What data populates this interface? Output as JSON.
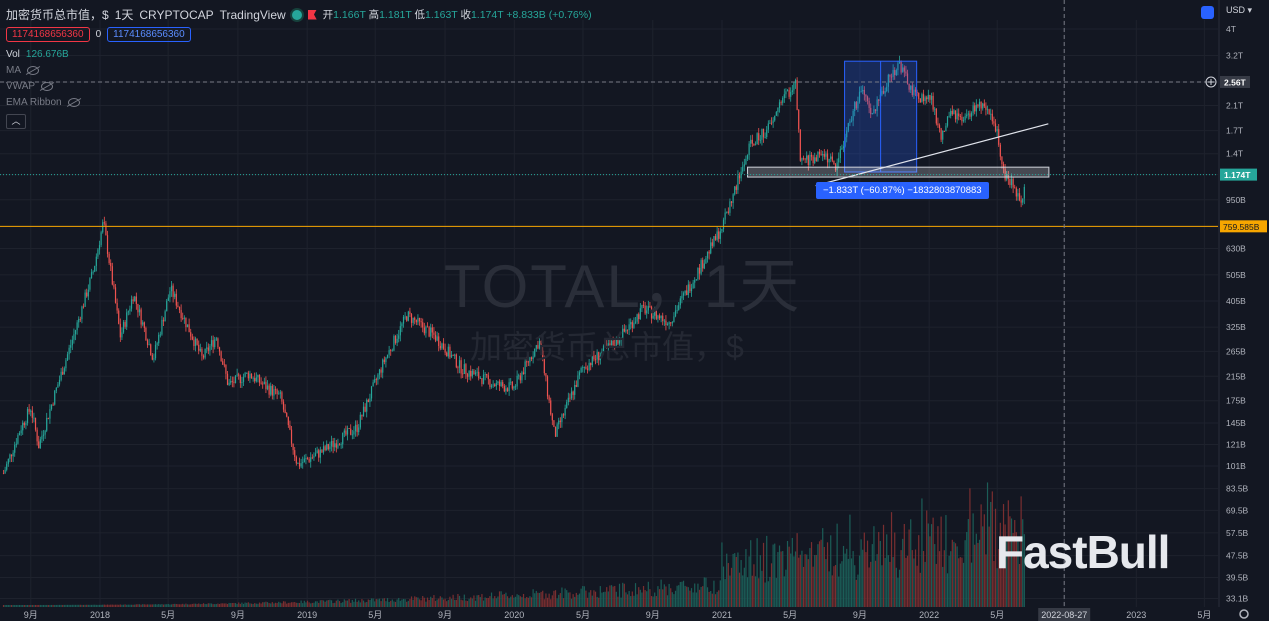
{
  "header": {
    "symbol_title": "加密货币总市值，$",
    "interval": "1天",
    "exchange": "CRYPTOCAP",
    "source": "TradingView",
    "ohlc_open_label": "开",
    "ohlc_open": "1.166T",
    "ohlc_high_label": "高",
    "ohlc_high": "1.181T",
    "ohlc_low_label": "低",
    "ohlc_low": "1.163T",
    "ohlc_close_label": "收",
    "ohlc_close": "1.174T",
    "change": "+8.833B (+0.76%)",
    "sell_box": "1174168656360",
    "spread": "0",
    "buy_box": "1174168656360",
    "currency": "USD"
  },
  "indicators": {
    "vol_label": "Vol",
    "vol_value": "126.676B",
    "ma": "MA",
    "vwap": "VWAP",
    "ema_ribbon": "EMA Ribbon",
    "collapse_icon": "chevron-up-icon"
  },
  "watermark": {
    "line1": "TOTAL，1天",
    "line2": "加密货币总市值，$",
    "brand": "FastBull"
  },
  "annotations": {
    "measure_label": "−1.833T (−60.87%) −1832803870883",
    "crosshair_price": "2.56T",
    "last_price": "1.174T",
    "hline_price": "759.585B",
    "crosshair_date": "2022-08-27"
  },
  "colors": {
    "background": "#131722",
    "up": "#26a69a",
    "down": "#ef5350",
    "accent": "#2962ff",
    "hline": "#f7a600"
  },
  "chart_data": {
    "type": "candlestick",
    "title": "加密货币总市值，$",
    "y_scale": "log",
    "y_ticks": [
      "4T",
      "3.2T",
      "2.56T",
      "2.1T",
      "1.7T",
      "1.4T",
      "1.174T",
      "950B",
      "759.585B",
      "630B",
      "505B",
      "405B",
      "325B",
      "265B",
      "215B",
      "175B",
      "145B",
      "121B",
      "101B",
      "83.5B",
      "69.5B",
      "57.5B",
      "47.5B",
      "39.5B",
      "33.1B"
    ],
    "x_ticks": [
      "9月",
      "2018",
      "5月",
      "9月",
      "2019",
      "5月",
      "9月",
      "2020",
      "5月",
      "9月",
      "2021",
      "5月",
      "9月",
      "2022",
      "5月",
      "2022-08-27",
      "2023",
      "5月"
    ],
    "price_path": [
      [
        "2017-07-15",
        95
      ],
      [
        "2017-08-15",
        140
      ],
      [
        "2017-09-01",
        165
      ],
      [
        "2017-09-15",
        120
      ],
      [
        "2017-10-15",
        190
      ],
      [
        "2017-11-15",
        300
      ],
      [
        "2017-12-20",
        520
      ],
      [
        "2018-01-07",
        790
      ],
      [
        "2018-02-06",
        300
      ],
      [
        "2018-03-01",
        430
      ],
      [
        "2018-04-05",
        250
      ],
      [
        "2018-05-05",
        450
      ],
      [
        "2018-06-30",
        250
      ],
      [
        "2018-07-25",
        300
      ],
      [
        "2018-08-15",
        200
      ],
      [
        "2018-09-20",
        220
      ],
      [
        "2018-11-15",
        180
      ],
      [
        "2018-12-15",
        102
      ],
      [
        "2019-01-30",
        115
      ],
      [
        "2019-03-30",
        140
      ],
      [
        "2019-05-15",
        240
      ],
      [
        "2019-06-26",
        360
      ],
      [
        "2019-08-15",
        300
      ],
      [
        "2019-09-30",
        230
      ],
      [
        "2019-11-30",
        200
      ],
      [
        "2019-12-31",
        195
      ],
      [
        "2020-02-14",
        290
      ],
      [
        "2020-03-12",
        130
      ],
      [
        "2020-04-30",
        230
      ],
      [
        "2020-06-30",
        290
      ],
      [
        "2020-08-15",
        380
      ],
      [
        "2020-09-30",
        340
      ],
      [
        "2020-11-30",
        570
      ],
      [
        "2020-12-31",
        750
      ],
      [
        "2021-02-20",
        1500
      ],
      [
        "2021-03-31",
        1800
      ],
      [
        "2021-04-14",
        2200
      ],
      [
        "2021-05-11",
        2500
      ],
      [
        "2021-05-19",
        1300
      ],
      [
        "2021-06-30",
        1400
      ],
      [
        "2021-07-20",
        1250
      ],
      [
        "2021-08-20",
        2000
      ],
      [
        "2021-09-06",
        2400
      ],
      [
        "2021-09-21",
        1900
      ],
      [
        "2021-10-20",
        2600
      ],
      [
        "2021-11-09",
        3000
      ],
      [
        "2021-12-04",
        2300
      ],
      [
        "2022-01-05",
        2200
      ],
      [
        "2022-01-22",
        1600
      ],
      [
        "2022-02-10",
        2000
      ],
      [
        "2022-03-01",
        1800
      ],
      [
        "2022-03-29",
        2150
      ],
      [
        "2022-04-30",
        1750
      ],
      [
        "2022-05-12",
        1200
      ],
      [
        "2022-06-13",
        950
      ],
      [
        "2022-06-20",
        1174
      ]
    ],
    "last_close": "1.174T",
    "horizontal_line": 759.585,
    "rectangle_range": {
      "start": "2021-08-05",
      "end": "2021-12-10",
      "low": 1200,
      "high": 3050
    },
    "trendline": {
      "from": [
        "2021-06-15",
        1070
      ],
      "to": [
        "2022-07-30",
        1800
      ]
    },
    "zone": {
      "start": "2021-02-15",
      "end": "2022-07-31",
      "low": 1150,
      "high": 1250
    },
    "units": "USD (B)"
  }
}
